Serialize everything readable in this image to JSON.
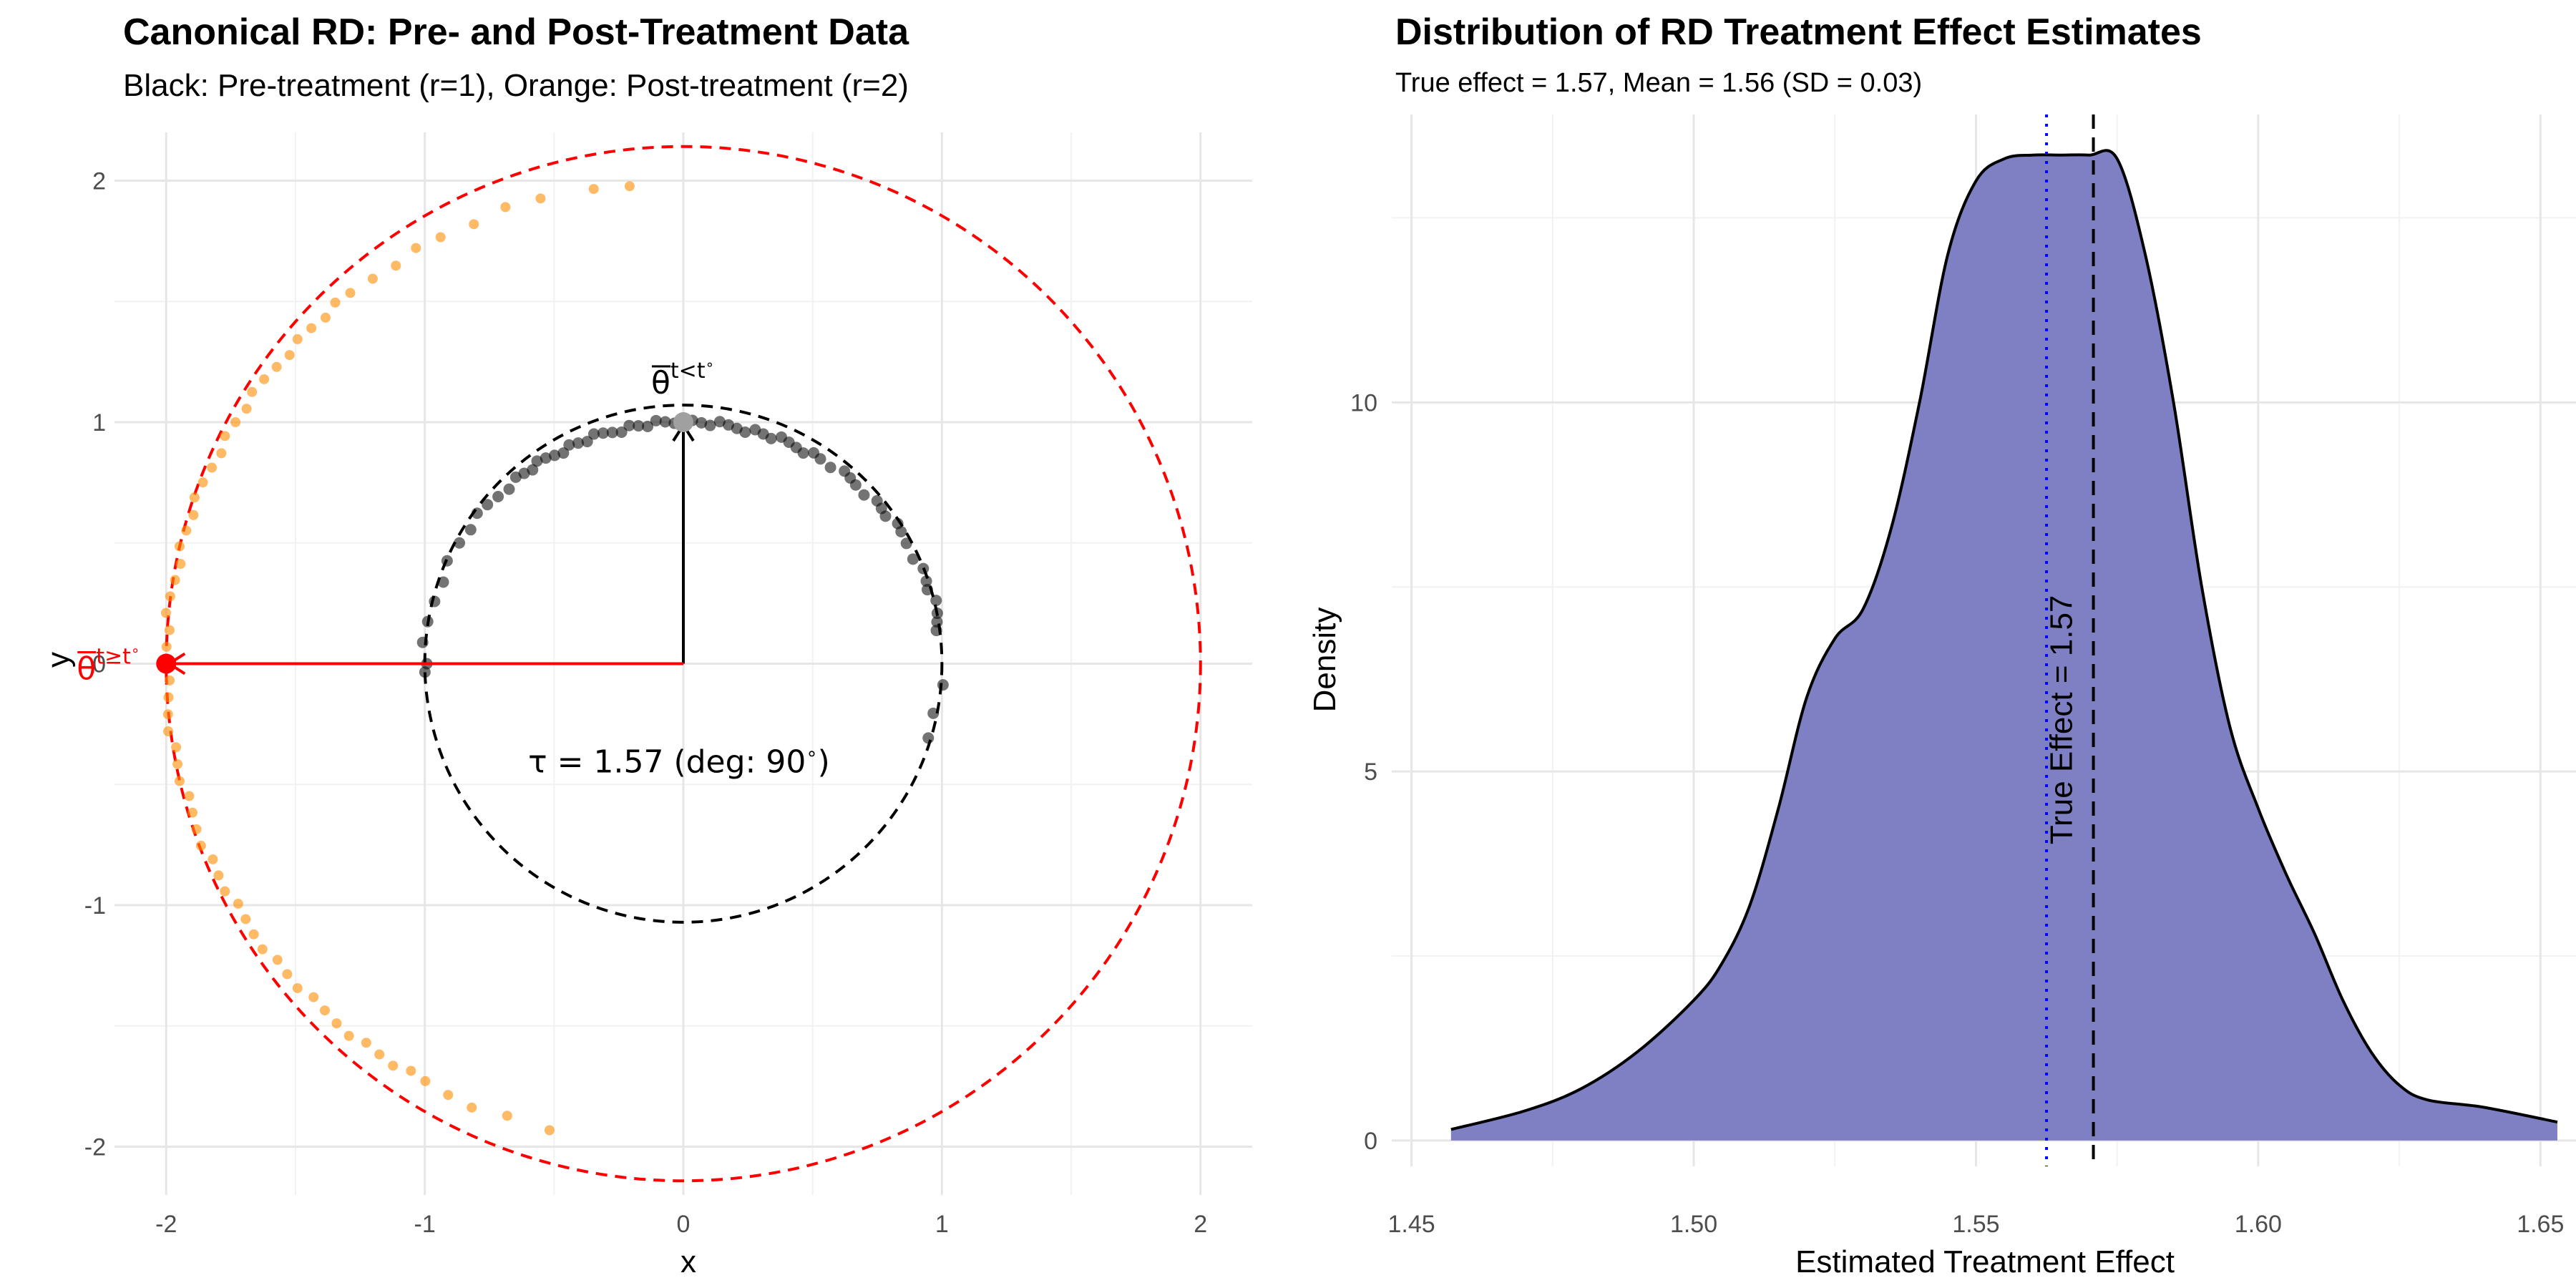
{
  "chart_data": [
    {
      "type": "scatter",
      "title": "Canonical RD: Pre- and Post-Treatment Data",
      "subtitle": "Black: Pre-treatment (r=1), Orange: Post-treatment (r=2)",
      "xlabel": "x",
      "ylabel": "y",
      "xlim": [
        -2.2,
        2.2
      ],
      "ylim": [
        -2.2,
        2.2
      ],
      "x_ticks": [
        -2,
        -1,
        0,
        1,
        2
      ],
      "y_ticks": [
        -2,
        -1,
        0,
        1,
        2
      ],
      "x_tick_labels": [
        "-2",
        "-1",
        "0",
        "1",
        "2"
      ],
      "y_tick_labels": [
        "-2",
        "-1",
        "0",
        "1",
        "2"
      ],
      "grid": true,
      "circles": [
        {
          "radius": 1,
          "color": "#000000",
          "style": "dashed"
        },
        {
          "radius": 2,
          "color": "#FF0000",
          "style": "dashed"
        }
      ],
      "series": [
        {
          "name": "Pre-treatment",
          "radius": 1,
          "color": "#000000",
          "angles_deg": [
            8,
            10,
            12,
            15,
            18,
            20,
            23,
            26,
            30,
            33,
            35,
            38,
            40,
            42,
            45,
            48,
            50,
            52,
            55,
            58,
            60,
            62,
            64,
            66,
            68,
            70,
            72,
            74,
            76,
            78,
            80,
            82,
            84,
            86,
            88,
            90,
            92,
            94,
            96,
            98,
            100,
            102,
            104,
            106,
            108,
            110,
            112,
            114,
            116,
            118,
            120,
            122,
            124,
            126,
            128,
            130,
            133,
            136,
            139,
            142,
            146,
            150,
            155,
            160,
            165,
            170,
            175,
            180,
            182,
            -5,
            -12,
            -18
          ]
        },
        {
          "name": "Post-treatment",
          "radius": 2,
          "color": "#FF8C00",
          "angles_deg": [
            96,
            100,
            106,
            110,
            114,
            118,
            121,
            124,
            127,
            130,
            132,
            134,
            136,
            138,
            140,
            142,
            144,
            146,
            148,
            150,
            152,
            154,
            156,
            158,
            160,
            162,
            164,
            166,
            168,
            170,
            172,
            174,
            176,
            178,
            180,
            182,
            184,
            186,
            188,
            190,
            192,
            194,
            196,
            198,
            200,
            202,
            204,
            206,
            208,
            210,
            212,
            214,
            216,
            218,
            220,
            222,
            224,
            226,
            228,
            230,
            232,
            234,
            236,
            238,
            240,
            243,
            246,
            250,
            255
          ]
        }
      ],
      "pre_point": {
        "x": 0,
        "y": 1,
        "color": "#A0A0A0"
      },
      "post_point": {
        "x": -2,
        "y": 0,
        "color": "#FF0000"
      },
      "pre_label_base": "θ",
      "pre_label_sup": "t<t",
      "post_label_base": "θ",
      "post_label_sup": "t≥t",
      "post_label_color": "#FF0000",
      "degree_sup": "∘",
      "annotation_tau": "τ = 1.57 (deg: 90",
      "annotation_deg_sup": "∘",
      "annotation_close": ")"
    },
    {
      "type": "area",
      "title": "Distribution of RD Treatment Effect Estimates",
      "subtitle": "True effect = 1.57, Mean = 1.56 (SD = 0.03)",
      "xlabel": "Estimated Treatment Effect",
      "ylabel": "Density",
      "xlim": [
        1.4465,
        1.6563
      ],
      "ylim": [
        -0.35,
        13.9
      ],
      "x_ticks": [
        1.45,
        1.5,
        1.55,
        1.6,
        1.65
      ],
      "x_tick_labels": [
        "1.45",
        "1.50",
        "1.55",
        "1.60",
        "1.65"
      ],
      "y_ticks": [
        0,
        5,
        10
      ],
      "y_tick_labels": [
        "0",
        "5",
        "10"
      ],
      "grid": true,
      "fill_color": "#7F7FC4",
      "line_color": "#000000",
      "x": [
        1.457,
        1.47,
        1.48,
        1.49,
        1.5,
        1.505,
        1.51,
        1.515,
        1.52,
        1.525,
        1.53,
        1.535,
        1.54,
        1.545,
        1.55,
        1.555,
        1.56,
        1.565,
        1.57,
        1.575,
        1.58,
        1.585,
        1.59,
        1.595,
        1.6,
        1.605,
        1.61,
        1.615,
        1.62,
        1.625,
        1.63,
        1.64,
        1.653
      ],
      "y": [
        0.15,
        0.4,
        0.7,
        1.2,
        1.9,
        2.4,
        3.2,
        4.5,
        6.0,
        6.8,
        7.2,
        8.3,
        10.0,
        12.0,
        13.0,
        13.3,
        13.35,
        13.35,
        13.35,
        13.3,
        12.0,
        10.0,
        7.5,
        5.6,
        4.5,
        3.6,
        2.8,
        1.9,
        1.2,
        0.75,
        0.55,
        0.45,
        0.25
      ],
      "true_effect": 1.5708,
      "mean_estimate": 1.5625,
      "true_line_color": "#000000",
      "mean_line_color": "#0000FF",
      "true_effect_label": "True Effect = 1.57"
    }
  ]
}
